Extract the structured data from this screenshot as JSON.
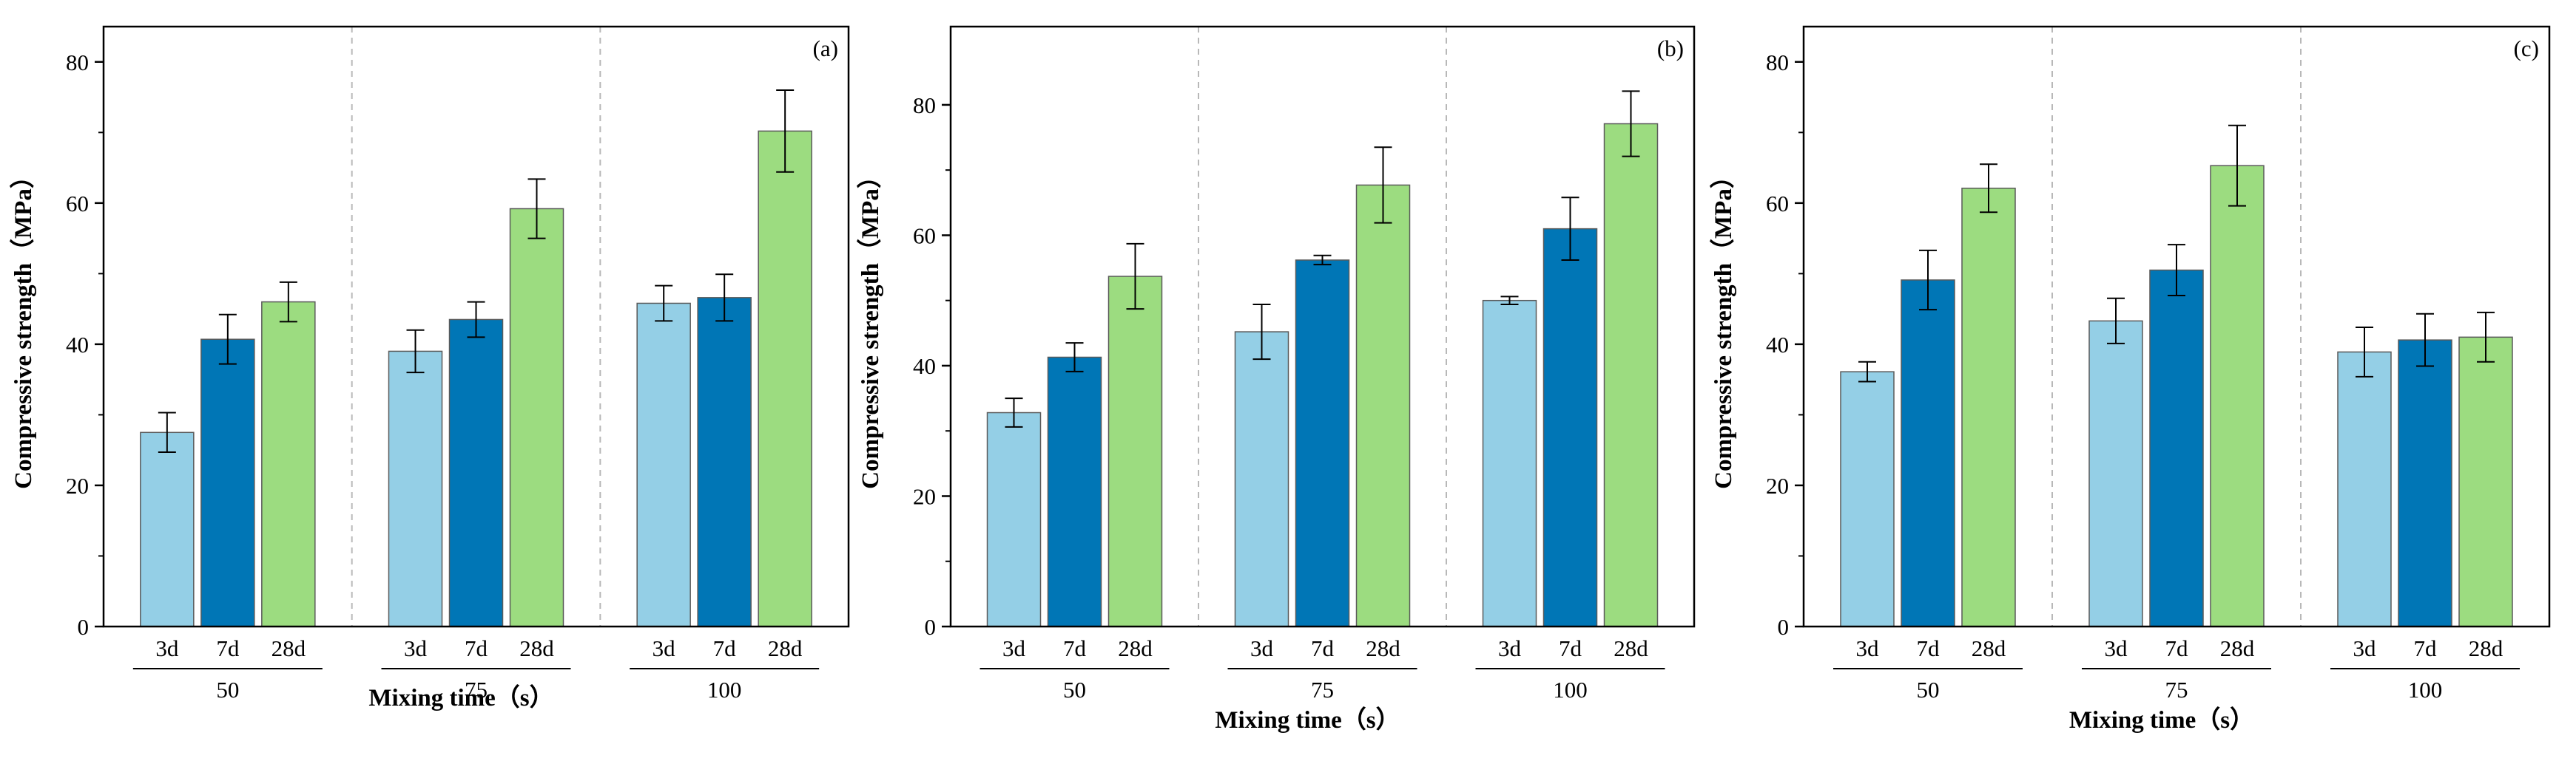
{
  "colors": {
    "3d": "#94cfe6",
    "7d": "#0076b6",
    "28d": "#9cdc80",
    "axis": "#000000",
    "separator": "#b8b8b8",
    "bar_edge": "#5a5a5a"
  },
  "chart_data": [
    {
      "type": "bar",
      "panel_label": "(a)",
      "xlabel": "Mixing time（s）",
      "ylabel": "Compressive strength（MPa）",
      "ylim": [
        0,
        85
      ],
      "yticks": [
        0,
        20,
        40,
        60,
        80
      ],
      "ytick_labels": [
        "0",
        "20",
        "40",
        "60",
        "80"
      ],
      "groups": [
        "50",
        "75",
        "100"
      ],
      "categories": [
        "3d",
        "7d",
        "28d"
      ],
      "series": [
        {
          "name": "3d",
          "values": [
            27.5,
            39.0,
            45.8
          ],
          "errors": [
            2.8,
            3.0,
            2.5
          ]
        },
        {
          "name": "7d",
          "values": [
            40.7,
            43.5,
            46.6
          ],
          "errors": [
            3.5,
            2.5,
            3.3
          ]
        },
        {
          "name": "28d",
          "values": [
            46.0,
            59.2,
            70.2
          ],
          "errors": [
            2.8,
            4.2,
            5.8
          ]
        }
      ]
    },
    {
      "type": "bar",
      "panel_label": "(b)",
      "xlabel": "Mixing time（s）",
      "ylabel": "Compressive strength（MPa）",
      "ylim": [
        0,
        92
      ],
      "yticks": [
        0,
        20,
        40,
        60,
        80
      ],
      "ytick_labels": [
        "0",
        "20",
        "40",
        "60",
        "80"
      ],
      "groups": [
        "50",
        "75",
        "100"
      ],
      "categories": [
        "3d",
        "7d",
        "28d"
      ],
      "series": [
        {
          "name": "3d",
          "values": [
            32.8,
            45.2,
            50.0
          ],
          "errors": [
            2.2,
            4.2,
            0.6
          ]
        },
        {
          "name": "7d",
          "values": [
            41.3,
            56.2,
            61.0
          ],
          "errors": [
            2.2,
            0.7,
            4.8
          ]
        },
        {
          "name": "28d",
          "values": [
            53.7,
            67.7,
            77.1
          ],
          "errors": [
            5.0,
            5.8,
            5.0
          ]
        }
      ]
    },
    {
      "type": "bar",
      "panel_label": "(c)",
      "xlabel": "Mixing time（s）",
      "ylabel": "Compressive strength（MPa）",
      "ylim": [
        0,
        85
      ],
      "yticks": [
        0,
        20,
        40,
        60,
        80
      ],
      "ytick_labels": [
        "0",
        "20",
        "40",
        "60",
        "80"
      ],
      "groups": [
        "50",
        "75",
        "100"
      ],
      "categories": [
        "3d",
        "7d",
        "28d"
      ],
      "series": [
        {
          "name": "3d",
          "values": [
            36.1,
            43.3,
            38.9
          ],
          "errors": [
            1.4,
            3.2,
            3.5
          ]
        },
        {
          "name": "7d",
          "values": [
            49.1,
            50.5,
            40.6
          ],
          "errors": [
            4.2,
            3.6,
            3.7
          ]
        },
        {
          "name": "28d",
          "values": [
            62.1,
            65.3,
            41.0
          ],
          "errors": [
            3.4,
            5.7,
            3.5
          ]
        }
      ]
    }
  ]
}
